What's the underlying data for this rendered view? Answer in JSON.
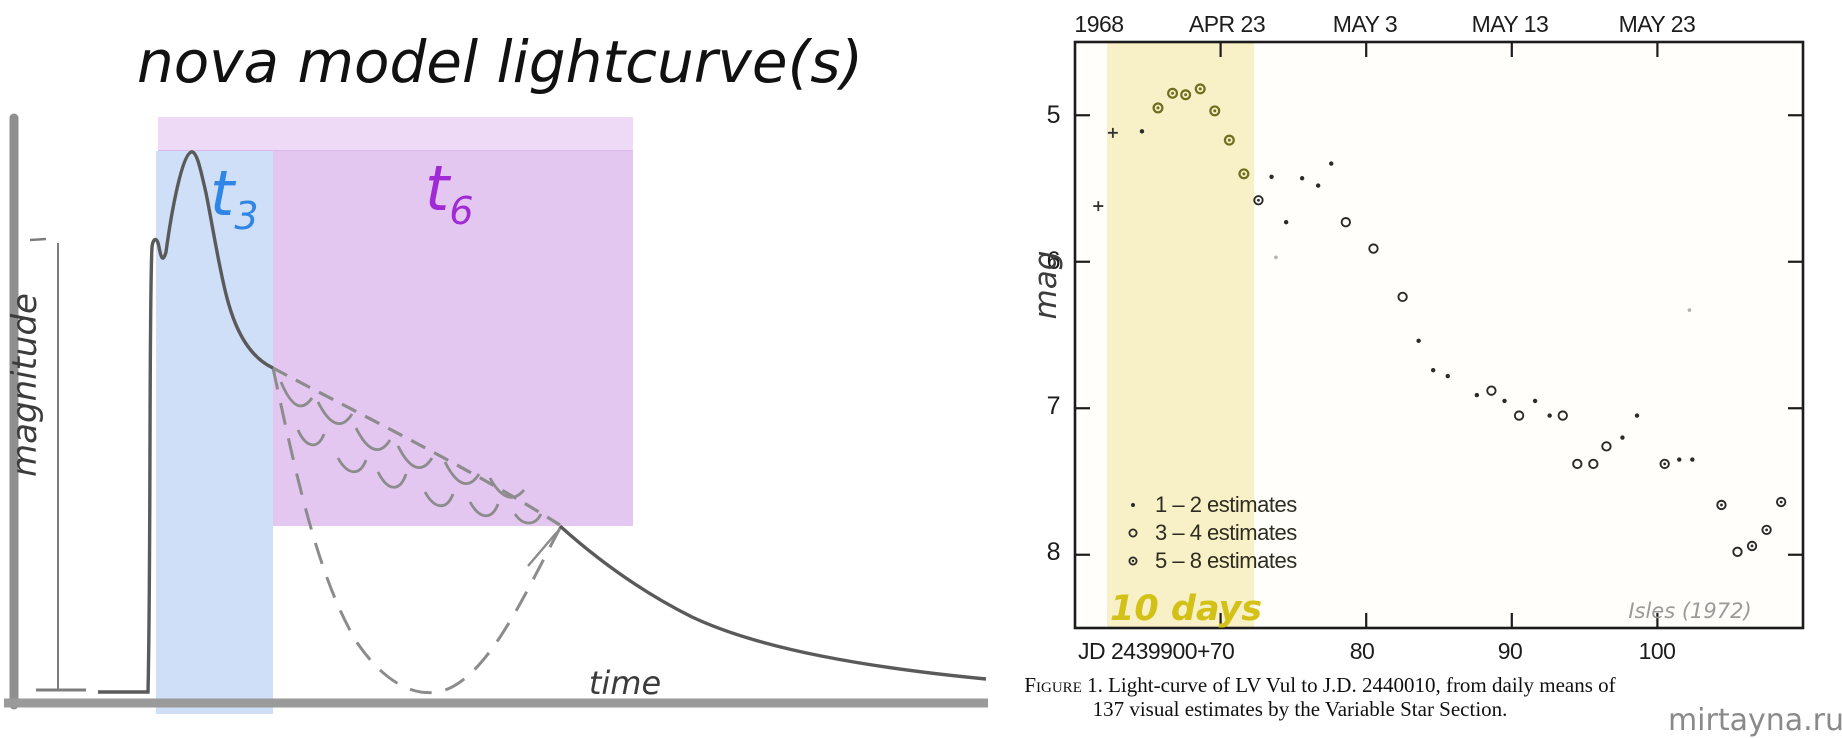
{
  "left_panel": {
    "title": "nova model lightcurve(s)",
    "y_axis_label": "magnitude",
    "x_axis_label": "time",
    "t3": {
      "base": "t",
      "sub": "3",
      "color": "#2f86e6"
    },
    "t6": {
      "base": "t",
      "sub": "6",
      "color": "#a02ad4"
    },
    "colors": {
      "blue_region": "#cfdff7",
      "purple_region": "#e3c7f0",
      "purple_top_band": "#eed9f6",
      "curve": "#5a5a5a",
      "axes": "#969696"
    }
  },
  "right_panel": {
    "top_axis_labels": [
      "1968",
      "APR 23",
      "MAY 3",
      "MAY 13",
      "MAY 23"
    ],
    "y_tick_labels": [
      "5",
      "6",
      "7",
      "8"
    ],
    "y_axis_label": "mag",
    "y_axis_label_color": "#2b8fe8",
    "x_axis_prefix": "JD 2439900+",
    "x_tick_labels": [
      "70",
      "80",
      "90",
      "100"
    ],
    "legend": [
      {
        "symbol": "dot",
        "label": "1 – 2 estimates"
      },
      {
        "symbol": "circle",
        "label": "3 – 4 estimates"
      },
      {
        "symbol": "circled-dot",
        "label": "5 – 8 estimates"
      }
    ],
    "band_label": "10 days",
    "band_label_color": "#d3c117",
    "band_color": "#f8f0c6",
    "attribution": "Isles (1972)",
    "caption_figure": "Figure 1.",
    "caption_line1_rest": "  Light-curve of LV Vul to J.D. 2440010, from daily means of",
    "caption_line2": "137 visual estimates by the Variable Star Section.",
    "watermark": "mirtayna.ru"
  },
  "chart_data": [
    {
      "name": "nova-model-lightcurve-schematic",
      "type": "line",
      "title": "nova model lightcurve(s)",
      "xlabel": "time",
      "ylabel": "magnitude",
      "annotations": [
        "t3 (blue shaded interval)",
        "t6 (purple shaded interval)"
      ],
      "description": "Schematic nova light curve: quiescence, steep rise with pre-maximum halt, peak, smooth decline; dashed alternative branches show oscillations and a deep dust-dip that recovers and rejoins the smooth decline."
    },
    {
      "name": "lv-vul-lightcurve",
      "type": "scatter",
      "title": "Light-curve of LV Vul",
      "xlabel": "JD 2439900+",
      "ylabel": "mag",
      "xlim": [
        60,
        110
      ],
      "ylim": [
        4.5,
        8.5
      ],
      "y_inverted_note": "magnitude increases downward",
      "x_ticks": [
        70,
        80,
        90,
        100
      ],
      "y_ticks": [
        5,
        6,
        7,
        8
      ],
      "top_axis_date_labels": {
        "1968": 61.5,
        "APR 23": 70,
        "MAY 3": 80,
        "MAY 13": 90,
        "MAY 23": 100
      },
      "highlight_band": {
        "jd_start": 62.2,
        "jd_end": 72.3,
        "label": "10 days"
      },
      "legend_position": "lower-left",
      "points": [
        {
          "jd": 61.6,
          "mag": 5.62,
          "sym": "plus"
        },
        {
          "jd": 62.6,
          "mag": 5.12,
          "sym": "plus"
        },
        {
          "jd": 64.6,
          "mag": 5.11,
          "sym": "dot"
        },
        {
          "jd": 65.7,
          "mag": 4.95,
          "sym": "circled-olive"
        },
        {
          "jd": 66.7,
          "mag": 4.85,
          "sym": "circled-olive"
        },
        {
          "jd": 67.6,
          "mag": 4.86,
          "sym": "circled-olive"
        },
        {
          "jd": 68.6,
          "mag": 4.82,
          "sym": "circled-olive"
        },
        {
          "jd": 69.6,
          "mag": 4.97,
          "sym": "circled-olive"
        },
        {
          "jd": 70.6,
          "mag": 5.17,
          "sym": "circled-olive"
        },
        {
          "jd": 71.6,
          "mag": 5.4,
          "sym": "circled-olive"
        },
        {
          "jd": 72.6,
          "mag": 5.58,
          "sym": "circled-dot"
        },
        {
          "jd": 73.5,
          "mag": 5.42,
          "sym": "dot"
        },
        {
          "jd": 73.8,
          "mag": 5.97,
          "sym": "faint-dot"
        },
        {
          "jd": 74.5,
          "mag": 5.73,
          "sym": "dot"
        },
        {
          "jd": 75.6,
          "mag": 5.43,
          "sym": "dot"
        },
        {
          "jd": 76.7,
          "mag": 5.48,
          "sym": "dot"
        },
        {
          "jd": 77.6,
          "mag": 5.33,
          "sym": "dot"
        },
        {
          "jd": 78.6,
          "mag": 5.73,
          "sym": "circle"
        },
        {
          "jd": 80.5,
          "mag": 5.91,
          "sym": "circle"
        },
        {
          "jd": 82.5,
          "mag": 6.24,
          "sym": "circle"
        },
        {
          "jd": 83.6,
          "mag": 6.54,
          "sym": "dot"
        },
        {
          "jd": 84.6,
          "mag": 6.74,
          "sym": "dot"
        },
        {
          "jd": 85.6,
          "mag": 6.78,
          "sym": "dot"
        },
        {
          "jd": 87.6,
          "mag": 6.91,
          "sym": "dot"
        },
        {
          "jd": 88.6,
          "mag": 6.88,
          "sym": "circle"
        },
        {
          "jd": 89.5,
          "mag": 6.95,
          "sym": "dot"
        },
        {
          "jd": 90.5,
          "mag": 7.05,
          "sym": "circle"
        },
        {
          "jd": 91.6,
          "mag": 6.95,
          "sym": "dot"
        },
        {
          "jd": 92.6,
          "mag": 7.05,
          "sym": "dot"
        },
        {
          "jd": 93.5,
          "mag": 7.05,
          "sym": "circle"
        },
        {
          "jd": 94.5,
          "mag": 7.38,
          "sym": "circle"
        },
        {
          "jd": 95.6,
          "mag": 7.38,
          "sym": "circle"
        },
        {
          "jd": 96.5,
          "mag": 7.26,
          "sym": "circle"
        },
        {
          "jd": 97.6,
          "mag": 7.2,
          "sym": "dot"
        },
        {
          "jd": 98.6,
          "mag": 7.05,
          "sym": "dot"
        },
        {
          "jd": 100.5,
          "mag": 7.38,
          "sym": "circled-dot"
        },
        {
          "jd": 101.5,
          "mag": 7.35,
          "sym": "dot"
        },
        {
          "jd": 102.2,
          "mag": 6.33,
          "sym": "faint-dot"
        },
        {
          "jd": 102.4,
          "mag": 7.35,
          "sym": "dot"
        },
        {
          "jd": 104.4,
          "mag": 7.66,
          "sym": "circled-dot"
        },
        {
          "jd": 105.5,
          "mag": 7.98,
          "sym": "circle"
        },
        {
          "jd": 106.5,
          "mag": 7.94,
          "sym": "circled-dot"
        },
        {
          "jd": 107.5,
          "mag": 7.83,
          "sym": "circled-dot"
        },
        {
          "jd": 108.5,
          "mag": 7.64,
          "sym": "circled-dot"
        }
      ]
    }
  ]
}
